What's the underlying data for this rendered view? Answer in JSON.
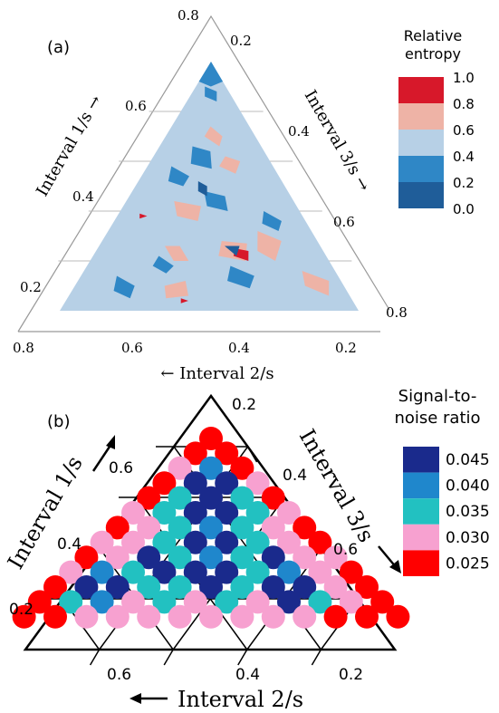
{
  "chart_data": [
    {
      "type": "heatmap",
      "panel_label": "(a)",
      "title": "",
      "axes": {
        "left": {
          "label": "Interval 1/s →",
          "ticks": [
            "0.8",
            "0.6",
            "0.4",
            "0.2"
          ]
        },
        "right": {
          "label": "Interval 3/s →",
          "ticks": [
            "0.2",
            "0.4",
            "0.6",
            "0.8"
          ]
        },
        "bottom": {
          "label": "← Interval 2/s",
          "ticks": [
            "0.8",
            "0.6",
            "0.4",
            "0.2"
          ]
        }
      },
      "grid": true,
      "legend": {
        "title": "Relative entropy",
        "position": "right",
        "tick_labels": [
          "1.0",
          "0.8",
          "0.6",
          "0.4",
          "0.2",
          "0.0"
        ],
        "bins": [
          {
            "range": [
              0.8,
              1.0
            ],
            "color": "#d7182a"
          },
          {
            "range": [
              0.6,
              0.8
            ],
            "color": "#eeb3a6"
          },
          {
            "range": [
              0.4,
              0.6
            ],
            "color": "#b7d0e6"
          },
          {
            "range": [
              0.2,
              0.4
            ],
            "color": "#2f87c6"
          },
          {
            "range": [
              0.0,
              0.2
            ],
            "color": "#1f5d99"
          }
        ]
      },
      "regions": [
        {
          "level": 0.7,
          "points": [
            [
              0.2,
              0.52,
              0.28
            ],
            [
              0.26,
              0.52,
              0.22
            ],
            [
              0.26,
              0.47,
              0.27
            ],
            [
              0.2,
              0.47,
              0.33
            ]
          ]
        },
        {
          "level": 0.7,
          "points": [
            [
              0.24,
              0.22,
              0.54
            ],
            [
              0.32,
              0.18,
              0.5
            ],
            [
              0.28,
              0.12,
              0.6
            ],
            [
              0.2,
              0.18,
              0.62
            ]
          ]
        },
        {
          "level": 0.7,
          "points": [
            [
              0.22,
              0.36,
              0.42
            ],
            [
              0.28,
              0.32,
              0.4
            ],
            [
              0.27,
              0.24,
              0.49
            ],
            [
              0.2,
              0.28,
              0.52
            ]
          ]
        },
        {
          "level": 0.7,
          "points": [
            [
              0.58,
              0.18,
              0.24
            ],
            [
              0.62,
              0.14,
              0.24
            ],
            [
              0.6,
              0.1,
              0.3
            ],
            [
              0.55,
              0.14,
              0.31
            ]
          ]
        },
        {
          "level": 0.7,
          "points": [
            [
              0.7,
              0.17,
              0.13
            ],
            [
              0.74,
              0.13,
              0.13
            ],
            [
              0.7,
              0.11,
              0.19
            ],
            [
              0.66,
              0.14,
              0.2
            ]
          ]
        },
        {
          "level": 0.7,
          "points": [
            [
              0.05,
              0.62,
              0.33
            ],
            [
              0.1,
              0.6,
              0.3
            ],
            [
              0.12,
              0.52,
              0.36
            ],
            [
              0.06,
              0.54,
              0.4
            ]
          ]
        },
        {
          "level": 0.7,
          "points": [
            [
              0.1,
              0.13,
              0.77
            ],
            [
              0.16,
              0.11,
              0.73
            ],
            [
              0.12,
              0.04,
              0.84
            ],
            [
              0.06,
              0.07,
              0.87
            ]
          ]
        },
        {
          "level": 0.7,
          "points": [
            [
              0.38,
              0.42,
              0.2
            ],
            [
              0.44,
              0.4,
              0.16
            ],
            [
              0.42,
              0.32,
              0.26
            ],
            [
              0.36,
              0.36,
              0.28
            ]
          ]
        },
        {
          "level": 0.9,
          "points": [
            [
              0.22,
              0.31,
              0.47
            ],
            [
              0.25,
              0.29,
              0.46
            ],
            [
              0.24,
              0.25,
              0.51
            ],
            [
              0.2,
              0.27,
              0.53
            ]
          ]
        },
        {
          "level": 0.9,
          "points": [
            [
              0.37,
              0.55,
              0.08
            ],
            [
              0.39,
              0.54,
              0.07
            ],
            [
              0.38,
              0.52,
              0.1
            ]
          ]
        },
        {
          "level": 0.9,
          "points": [
            [
              0.03,
              0.58,
              0.39
            ],
            [
              0.05,
              0.57,
              0.38
            ],
            [
              0.04,
              0.55,
              0.41
            ]
          ]
        },
        {
          "level": 0.3,
          "points": [
            [
              0.59,
              0.27,
              0.14
            ],
            [
              0.66,
              0.23,
              0.11
            ],
            [
              0.64,
              0.18,
              0.18
            ],
            [
              0.57,
              0.21,
              0.22
            ]
          ]
        },
        {
          "level": 0.3,
          "points": [
            [
              0.42,
              0.3,
              0.28
            ],
            [
              0.48,
              0.28,
              0.24
            ],
            [
              0.46,
              0.22,
              0.32
            ],
            [
              0.4,
              0.24,
              0.36
            ]
          ]
        },
        {
          "level": 0.3,
          "points": [
            [
              0.52,
              0.38,
              0.1
            ],
            [
              0.58,
              0.34,
              0.08
            ],
            [
              0.54,
              0.3,
              0.16
            ],
            [
              0.5,
              0.34,
              0.16
            ]
          ]
        },
        {
          "level": 0.3,
          "points": [
            [
              0.08,
              0.78,
              0.14
            ],
            [
              0.14,
              0.74,
              0.12
            ],
            [
              0.1,
              0.7,
              0.2
            ],
            [
              0.05,
              0.74,
              0.21
            ]
          ]
        },
        {
          "level": 0.3,
          "points": [
            [
              0.18,
              0.6,
              0.22
            ],
            [
              0.22,
              0.56,
              0.22
            ],
            [
              0.18,
              0.53,
              0.29
            ],
            [
              0.15,
              0.57,
              0.28
            ]
          ]
        },
        {
          "level": 0.3,
          "points": [
            [
              0.12,
              0.38,
              0.5
            ],
            [
              0.18,
              0.34,
              0.48
            ],
            [
              0.14,
              0.28,
              0.58
            ],
            [
              0.09,
              0.32,
              0.59
            ]
          ]
        },
        {
          "level": 0.3,
          "points": [
            [
              0.35,
              0.15,
              0.5
            ],
            [
              0.4,
              0.12,
              0.48
            ],
            [
              0.36,
              0.08,
              0.56
            ],
            [
              0.32,
              0.11,
              0.57
            ]
          ]
        },
        {
          "level": 0.3,
          "points": [
            [
              0.86,
              0.09,
              0.05
            ],
            [
              0.9,
              0.07,
              0.03
            ],
            [
              0.88,
              0.04,
              0.08
            ],
            [
              0.84,
              0.06,
              0.1
            ]
          ]
        },
        {
          "level": 0.1,
          "points": [
            [
              0.48,
              0.3,
              0.22
            ],
            [
              0.52,
              0.28,
              0.2
            ],
            [
              0.5,
              0.26,
              0.24
            ],
            [
              0.46,
              0.28,
              0.26
            ]
          ]
        },
        {
          "level": 0.1,
          "points": [
            [
              0.26,
              0.32,
              0.42
            ],
            [
              0.26,
              0.27,
              0.47
            ],
            [
              0.22,
              0.3,
              0.48
            ]
          ]
        }
      ]
    },
    {
      "type": "scatter",
      "panel_label": "(b)",
      "title": "",
      "axes": {
        "left": {
          "label": "Interval 1/s",
          "ticks": [
            "0.6",
            "0.4",
            "0.2"
          ]
        },
        "right": {
          "label": "Interval 3/s",
          "ticks": [
            "0.2",
            "0.4",
            "0.6"
          ]
        },
        "bottom": {
          "label": "Interval 2/s",
          "ticks": [
            "0.6",
            "0.4",
            "0.2"
          ]
        }
      },
      "legend": {
        "title": "Signal-to-noise ratio",
        "position": "right",
        "bins": [
          {
            "label": "0.045",
            "color": "#1a2a8c"
          },
          {
            "label": "0.040",
            "color": "#1f87cc"
          },
          {
            "label": "0.035",
            "color": "#22c1c1"
          },
          {
            "label": "0.030",
            "color": "#f7a1d0"
          },
          {
            "label": "0.025",
            "color": "#ff0000"
          }
        ]
      },
      "grid_rows": [
        [
          "0.025"
        ],
        [
          "0.025",
          "0.025"
        ],
        [
          "0.030",
          "0.040",
          "0.025"
        ],
        [
          "0.025",
          "0.045",
          "0.045",
          "0.030"
        ],
        [
          "0.025",
          "0.035",
          "0.045",
          "0.035",
          "0.025"
        ],
        [
          "0.030",
          "0.035",
          "0.045",
          "0.045",
          "0.035",
          "0.030"
        ],
        [
          "0.025",
          "0.030",
          "0.035",
          "0.040",
          "0.035",
          "0.030",
          "0.025"
        ],
        [
          "0.030",
          "0.030",
          "0.035",
          "0.045",
          "0.045",
          "0.035",
          "0.030",
          "0.025"
        ],
        [
          "0.025",
          "0.030",
          "0.045",
          "0.035",
          "0.040",
          "0.035",
          "0.045",
          "0.030",
          "0.030"
        ],
        [
          "0.030",
          "0.040",
          "0.035",
          "0.045",
          "0.045",
          "0.045",
          "0.035",
          "0.040",
          "0.030",
          "0.025"
        ],
        [
          "0.025",
          "0.045",
          "0.045",
          "0.035",
          "0.035",
          "0.045",
          "0.035",
          "0.045",
          "0.045",
          "0.030",
          "0.025"
        ],
        [
          "0.025",
          "0.035",
          "0.040",
          "0.030",
          "0.035",
          "0.030",
          "0.035",
          "0.030",
          "0.045",
          "0.035",
          "0.030",
          "0.025"
        ],
        [
          "0.025",
          "0.025",
          "0.030",
          "0.030",
          "0.030",
          "0.030",
          "0.030",
          "0.030",
          "0.030",
          "0.030",
          "0.025",
          "0.025",
          "0.025"
        ]
      ]
    }
  ]
}
